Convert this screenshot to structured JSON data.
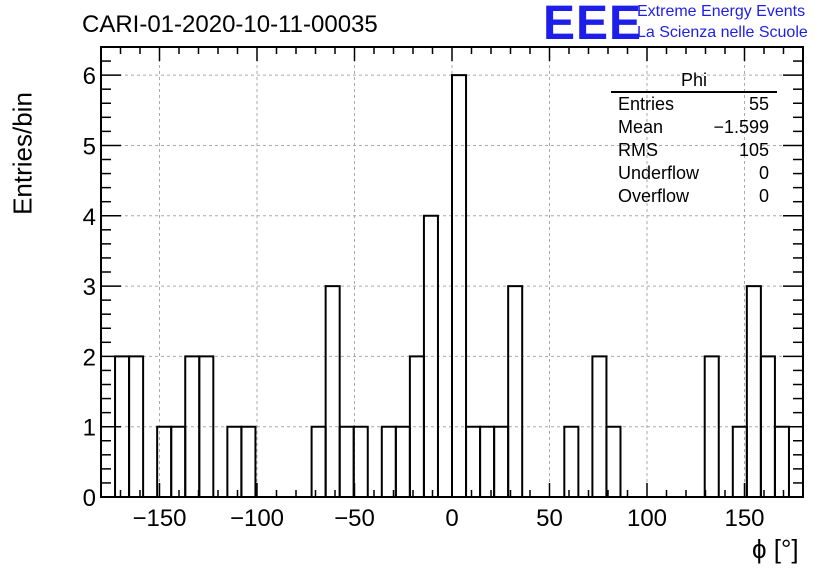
{
  "header": {
    "title": "CARI-01-2020-10-11-00035",
    "logo_text": "EEE",
    "logo_line1": "Extreme Energy Events",
    "logo_line2": "La Scienza nelle Scuole",
    "logo_color": "#1e1eeb"
  },
  "stats": {
    "name": "Phi",
    "rows": [
      {
        "label": "Entries",
        "value": "55"
      },
      {
        "label": "Mean",
        "value": "−1.599"
      },
      {
        "label": "RMS",
        "value": "105"
      },
      {
        "label": "Underflow",
        "value": "0"
      },
      {
        "label": "Overflow",
        "value": "0"
      }
    ]
  },
  "chart_data": {
    "type": "bar",
    "histogram": true,
    "xlabel": "ϕ [°]",
    "ylabel": "Entries/bin",
    "xlim": [
      -180,
      180
    ],
    "ylim": [
      0,
      6.4
    ],
    "bin_width": 7.2,
    "bin_starts": [
      -172.8,
      -165.6,
      -158.4,
      -151.2,
      -144,
      -136.8,
      -129.6,
      -122.4,
      -115.2,
      -108,
      -100.8,
      -93.6,
      -86.4,
      -79.2,
      -72,
      -64.8,
      -57.6,
      -50.4,
      -43.2,
      -36,
      -28.8,
      -21.6,
      -14.4,
      -7.2,
      0,
      7.2,
      14.4,
      21.6,
      28.8,
      36,
      43.2,
      50.4,
      57.6,
      64.8,
      72,
      79.2,
      86.4,
      93.6,
      100.8,
      108,
      115.2,
      122.4,
      129.6,
      136.8,
      144,
      151.2,
      158.4,
      165.6,
      172.8
    ],
    "values": [
      2,
      2,
      0,
      1,
      1,
      2,
      2,
      0,
      1,
      1,
      0,
      0,
      0,
      0,
      1,
      3,
      1,
      1,
      0,
      1,
      1,
      2,
      4,
      0,
      6,
      1,
      1,
      1,
      3,
      0,
      0,
      0,
      1,
      0,
      2,
      1,
      0,
      0,
      0,
      0,
      0,
      0,
      2,
      0,
      1,
      3,
      2,
      1,
      0
    ],
    "xticks": [
      -150,
      -100,
      -50,
      0,
      50,
      100,
      150
    ],
    "xtick_labels": [
      "−150",
      "−100",
      "−50",
      "0",
      "50",
      "100",
      "150"
    ],
    "yticks": [
      0,
      1,
      2,
      3,
      4,
      5,
      6
    ],
    "ytick_labels": [
      "0",
      "1",
      "2",
      "3",
      "4",
      "5",
      "6"
    ],
    "grid": true,
    "line_color": "#000000",
    "grid_color": "#aaaaaa"
  }
}
